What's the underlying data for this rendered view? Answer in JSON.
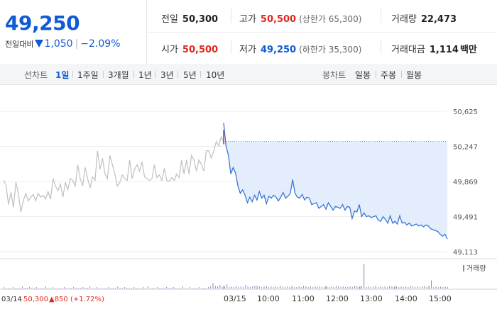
{
  "quote": {
    "price": "49,250",
    "change_label": "전일대비",
    "change_value": "1,050",
    "change_pct": "−2.09%",
    "prev_close_label": "전일",
    "prev_close": "50,300",
    "high_label": "고가",
    "high": "50,500",
    "upper_limit": "(상한가 65,300)",
    "volume_label": "거래량",
    "volume": "22,473",
    "open_label": "시가",
    "open": "50,500",
    "low_label": "저가",
    "low": "49,250",
    "lower_limit": "(하한가 35,300)",
    "value_label": "거래대금",
    "value": "1,114",
    "value_unit": "백만"
  },
  "tabs": {
    "line_label": "선차트",
    "line_items": [
      "1일",
      "1주일",
      "3개월",
      "1년",
      "3년",
      "5년",
      "10년"
    ],
    "candle_label": "봉차트",
    "candle_items": [
      "일봉",
      "주봉",
      "월봉"
    ]
  },
  "chart_data": {
    "type": "line",
    "ylim": [
      49113,
      50625
    ],
    "y_ticks": [
      "50,625",
      "50,247",
      "49,869",
      "49,491",
      "49,113"
    ],
    "x_ticks": [
      "03/15",
      "10:00",
      "11:00",
      "12:00",
      "13:00",
      "14:00",
      "15:00"
    ],
    "prev_day_label": "03/14",
    "prev_day_close": "50,300",
    "prev_day_change": "▲850 (+1.72%)",
    "volume_legend": "거래량",
    "reference_price": 50300,
    "colors": {
      "today": "#3a78d8",
      "prev": "#c0c0c0",
      "fill": "#e3edfb",
      "volume": "#9b7cc4"
    },
    "series": [
      {
        "values": [
          49880,
          49830,
          49620,
          49750,
          49590,
          49860,
          49740,
          49540,
          49660,
          49740,
          49660,
          49700,
          49730,
          49660,
          49740,
          49700,
          49720,
          49680,
          49760,
          49680,
          49900,
          49820,
          49770,
          49840,
          49700,
          49860,
          49780,
          49900,
          49880,
          49820,
          50050,
          49900,
          49820,
          50020,
          49900,
          49800,
          49920,
          49880,
          50200,
          50000,
          50120,
          49950,
          49900,
          50150,
          50050,
          49950,
          49820,
          49860,
          49940,
          49900,
          49880,
          50100,
          49900,
          50000,
          50050,
          49980,
          50080,
          49920,
          49900,
          49880,
          49900,
          50050,
          49910,
          49940,
          49880,
          50010,
          49880,
          49870,
          49910,
          49880,
          49950,
          49910,
          50100,
          49950,
          50100,
          49950,
          50150,
          50100,
          49980,
          50100,
          50050,
          49980,
          50200,
          50200,
          50120,
          50200,
          50300,
          50250,
          50350,
          50300
        ]
      },
      {
        "values": [
          50500,
          50250,
          50150,
          49950,
          50020,
          49960,
          49820,
          49740,
          49780,
          49720,
          49640,
          49700,
          49650,
          49720,
          49670,
          49760,
          49690,
          49720,
          49630,
          49710,
          49690,
          49720,
          49700,
          49660,
          49700,
          49750,
          49690,
          49710,
          49740,
          49890,
          49740,
          49700,
          49690,
          49730,
          49670,
          49700,
          49690,
          49620,
          49630,
          49640,
          49580,
          49600,
          49620,
          49570,
          49640,
          49600,
          49560,
          49600,
          49590,
          49580,
          49620,
          49560,
          49600,
          49590,
          49470,
          49550,
          49540,
          49620,
          49490,
          49530,
          49490,
          49500,
          49480,
          49490,
          49500,
          49450,
          49440,
          49490,
          49460,
          49420,
          49500,
          49420,
          49440,
          49410,
          49500,
          49420,
          49430,
          49400,
          49420,
          49390,
          49400,
          49410,
          49390,
          49400,
          49380,
          49400,
          49390,
          49360,
          49350,
          49340,
          49330,
          49300,
          49280,
          49300,
          49250
        ]
      }
    ],
    "volumes": [
      2,
      1,
      1,
      1,
      2,
      1,
      1,
      1,
      3,
      1,
      1,
      2,
      1,
      1,
      2,
      1,
      1,
      1,
      3,
      1,
      1,
      2,
      1,
      1,
      1,
      1,
      2,
      1,
      1,
      1,
      2,
      1,
      1,
      1,
      2,
      1,
      1,
      3,
      1,
      1,
      2,
      1,
      1,
      1,
      1,
      2,
      1,
      1,
      1,
      3,
      1,
      1,
      2,
      1,
      1,
      1,
      2,
      1,
      1,
      1,
      2,
      1,
      3,
      1,
      1,
      1,
      2,
      1,
      1,
      1,
      2,
      1,
      1,
      2,
      1,
      1,
      1,
      3,
      1,
      1,
      2,
      1,
      1,
      1,
      2,
      1,
      1,
      1,
      2,
      3,
      8,
      4,
      3,
      5,
      2,
      3,
      6,
      2,
      3,
      2,
      4,
      2,
      3,
      2,
      5,
      3,
      2,
      3,
      4,
      2,
      3,
      2,
      3,
      4,
      2,
      3,
      2,
      3,
      2,
      4,
      3,
      2,
      3,
      2,
      3,
      2,
      2,
      3,
      2,
      4,
      3,
      2,
      3,
      2,
      3,
      2,
      3,
      2,
      2,
      3,
      2,
      3,
      2,
      4,
      3,
      2,
      3,
      2,
      2,
      3,
      2,
      4,
      3,
      2,
      3,
      36,
      2,
      3,
      2,
      3,
      4,
      2,
      3,
      2,
      3,
      2,
      4,
      3,
      2,
      3,
      2,
      3,
      2,
      3,
      2,
      4,
      3,
      2,
      3,
      2,
      3,
      4,
      2,
      3,
      12,
      2,
      3,
      2,
      3,
      2,
      3,
      2
    ]
  }
}
